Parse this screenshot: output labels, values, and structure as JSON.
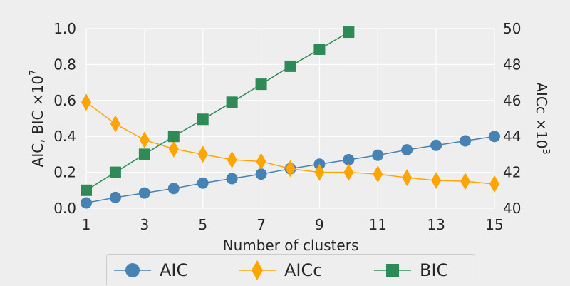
{
  "chart_data": {
    "type": "line",
    "x": [
      1,
      2,
      3,
      4,
      5,
      6,
      7,
      8,
      9,
      10,
      11,
      12,
      13,
      14,
      15
    ],
    "xlabel": "Number of clusters",
    "xlim": [
      1,
      15
    ],
    "xticks": [
      1,
      3,
      5,
      7,
      9,
      11,
      13,
      15
    ],
    "ylabel_left": "AIC, BIC ×10",
    "ylabel_left_exp": "7",
    "ylim_left": [
      0.0,
      1.0
    ],
    "yticks_left": [
      "0.0",
      "0.2",
      "0.4",
      "0.6",
      "0.8",
      "1.0"
    ],
    "ylabel_right": "AICc ×10",
    "ylabel_right_exp": "3",
    "ylim_right": [
      40,
      50
    ],
    "yticks_right": [
      "40",
      "42",
      "44",
      "46",
      "48",
      "50"
    ],
    "grid": true,
    "legend_position": "bottom-center",
    "series": [
      {
        "name": "AIC",
        "axis": "left",
        "marker": "circle",
        "color": "#4682b4",
        "x": [
          1,
          2,
          3,
          4,
          5,
          6,
          7,
          8,
          9,
          10,
          11,
          12,
          13,
          14,
          15
        ],
        "values": [
          0.03,
          0.06,
          0.085,
          0.11,
          0.14,
          0.165,
          0.19,
          0.22,
          0.245,
          0.27,
          0.295,
          0.325,
          0.35,
          0.375,
          0.4
        ]
      },
      {
        "name": "AICc",
        "axis": "right",
        "marker": "diamond",
        "color": "#ffa500",
        "x": [
          1,
          2,
          3,
          4,
          5,
          6,
          7,
          8,
          9,
          10,
          11,
          12,
          13,
          14,
          15
        ],
        "values": [
          45.9,
          44.7,
          43.8,
          43.3,
          43.0,
          42.7,
          42.6,
          42.2,
          42.0,
          42.0,
          41.9,
          41.7,
          41.55,
          41.5,
          41.35
        ]
      },
      {
        "name": "BIC",
        "axis": "left",
        "marker": "square",
        "color": "#2e8b57",
        "x": [
          1,
          2,
          3,
          4,
          5,
          6,
          7,
          8,
          9,
          10
        ],
        "values": [
          0.1,
          0.2,
          0.3,
          0.4,
          0.495,
          0.59,
          0.69,
          0.79,
          0.885,
          0.98
        ]
      }
    ]
  }
}
